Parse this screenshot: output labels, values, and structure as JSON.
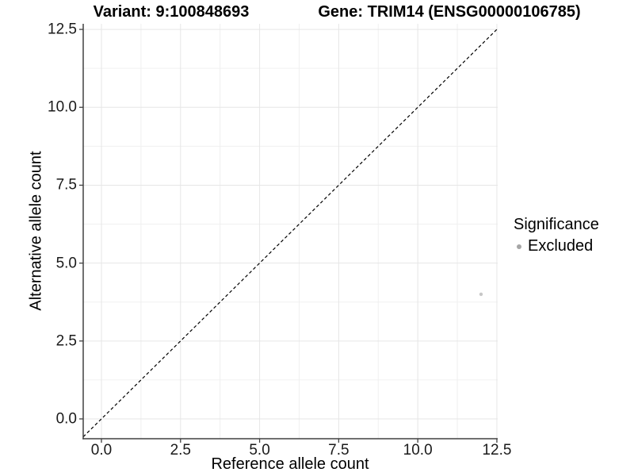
{
  "header": {
    "title_left": "Variant: 9:100848693",
    "title_right": "Gene: TRIM14 (ENSG00000106785)"
  },
  "chart_data": {
    "type": "scatter",
    "xlabel": "Reference allele count",
    "ylabel": "Alternative allele count",
    "x_ticks": [
      0,
      2.5,
      5,
      7.5,
      10,
      12.5
    ],
    "x_tick_labels": [
      "0.0",
      "2.5",
      "5.0",
      "7.5",
      "10.0",
      "12.5"
    ],
    "x_minor_ticks": [
      1.25,
      3.75,
      6.25,
      8.75,
      11.25
    ],
    "y_ticks": [
      0,
      2.5,
      5,
      7.5,
      10,
      12.5
    ],
    "y_tick_labels": [
      "0.0",
      "2.5",
      "5.0",
      "7.5",
      "10.0",
      "12.5"
    ],
    "y_minor_ticks": [
      1.25,
      3.75,
      6.25,
      8.75,
      11.25
    ],
    "xlim": [
      -0.576,
      12.526
    ],
    "ylim": [
      -0.636,
      12.68
    ],
    "grid": "major+minor",
    "reference_line": {
      "kind": "identity",
      "style": "dashed",
      "color": "#000000"
    },
    "series": [
      {
        "name": "Excluded",
        "color": "#c7c7c7",
        "point_radius": 2.2,
        "points": [
          {
            "x": 12,
            "y": 4
          }
        ]
      }
    ],
    "legend": {
      "position": "right",
      "title": "Significance",
      "entries": [
        {
          "label": "Excluded",
          "color": "#a6a6a6"
        }
      ]
    },
    "colors": {
      "grid_major": "#e6e6e6",
      "grid_minor": "#f0f0f0",
      "axis_line": "#404040",
      "tick_label": "#1a1a1a"
    }
  }
}
